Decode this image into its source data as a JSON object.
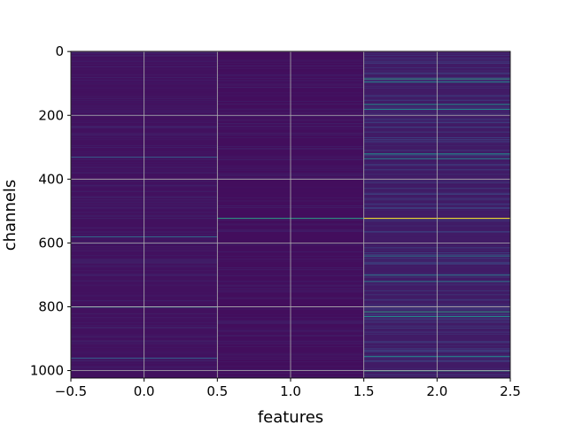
{
  "chart_data": {
    "type": "heatmap",
    "colormap": "viridis",
    "xlabel": "features",
    "ylabel": "channels",
    "x_ticks": [
      "−0.5",
      "0.0",
      "0.5",
      "1.0",
      "1.5",
      "2.0",
      "2.5"
    ],
    "y_ticks": [
      "0",
      "200",
      "400",
      "600",
      "800",
      "1000"
    ],
    "x_tick_values": [
      -0.5,
      0.0,
      0.5,
      1.0,
      1.5,
      2.0,
      2.5
    ],
    "y_tick_values": [
      0,
      200,
      400,
      600,
      800,
      1000
    ],
    "xlim": [
      -0.5,
      2.5
    ],
    "ylim": [
      1023.5,
      -0.5
    ],
    "y_inverted": true,
    "grid": true,
    "columns": [
      {
        "feature": 0,
        "base": 0.05,
        "highlights": [
          {
            "channel": 330,
            "value": 0.3
          },
          {
            "channel": 580,
            "value": 0.35
          },
          {
            "channel": 800,
            "value": 0.45
          },
          {
            "channel": 960,
            "value": 0.3
          }
        ]
      },
      {
        "feature": 1,
        "base": 0.04,
        "highlights": [
          {
            "channel": 522,
            "value": 0.55
          }
        ]
      },
      {
        "feature": 2,
        "base": 0.08,
        "highlights": [
          {
            "channel": 85,
            "value": 0.55
          },
          {
            "channel": 95,
            "value": 0.45
          },
          {
            "channel": 165,
            "value": 0.5
          },
          {
            "channel": 180,
            "value": 0.5
          },
          {
            "channel": 320,
            "value": 0.5
          },
          {
            "channel": 335,
            "value": 0.45
          },
          {
            "channel": 522,
            "value": 1.0
          },
          {
            "channel": 640,
            "value": 0.4
          },
          {
            "channel": 700,
            "value": 0.4
          },
          {
            "channel": 720,
            "value": 0.4
          },
          {
            "channel": 815,
            "value": 0.55
          },
          {
            "channel": 830,
            "value": 0.5
          },
          {
            "channel": 955,
            "value": 0.45
          },
          {
            "channel": 1000,
            "value": 0.55
          }
        ]
      }
    ]
  }
}
